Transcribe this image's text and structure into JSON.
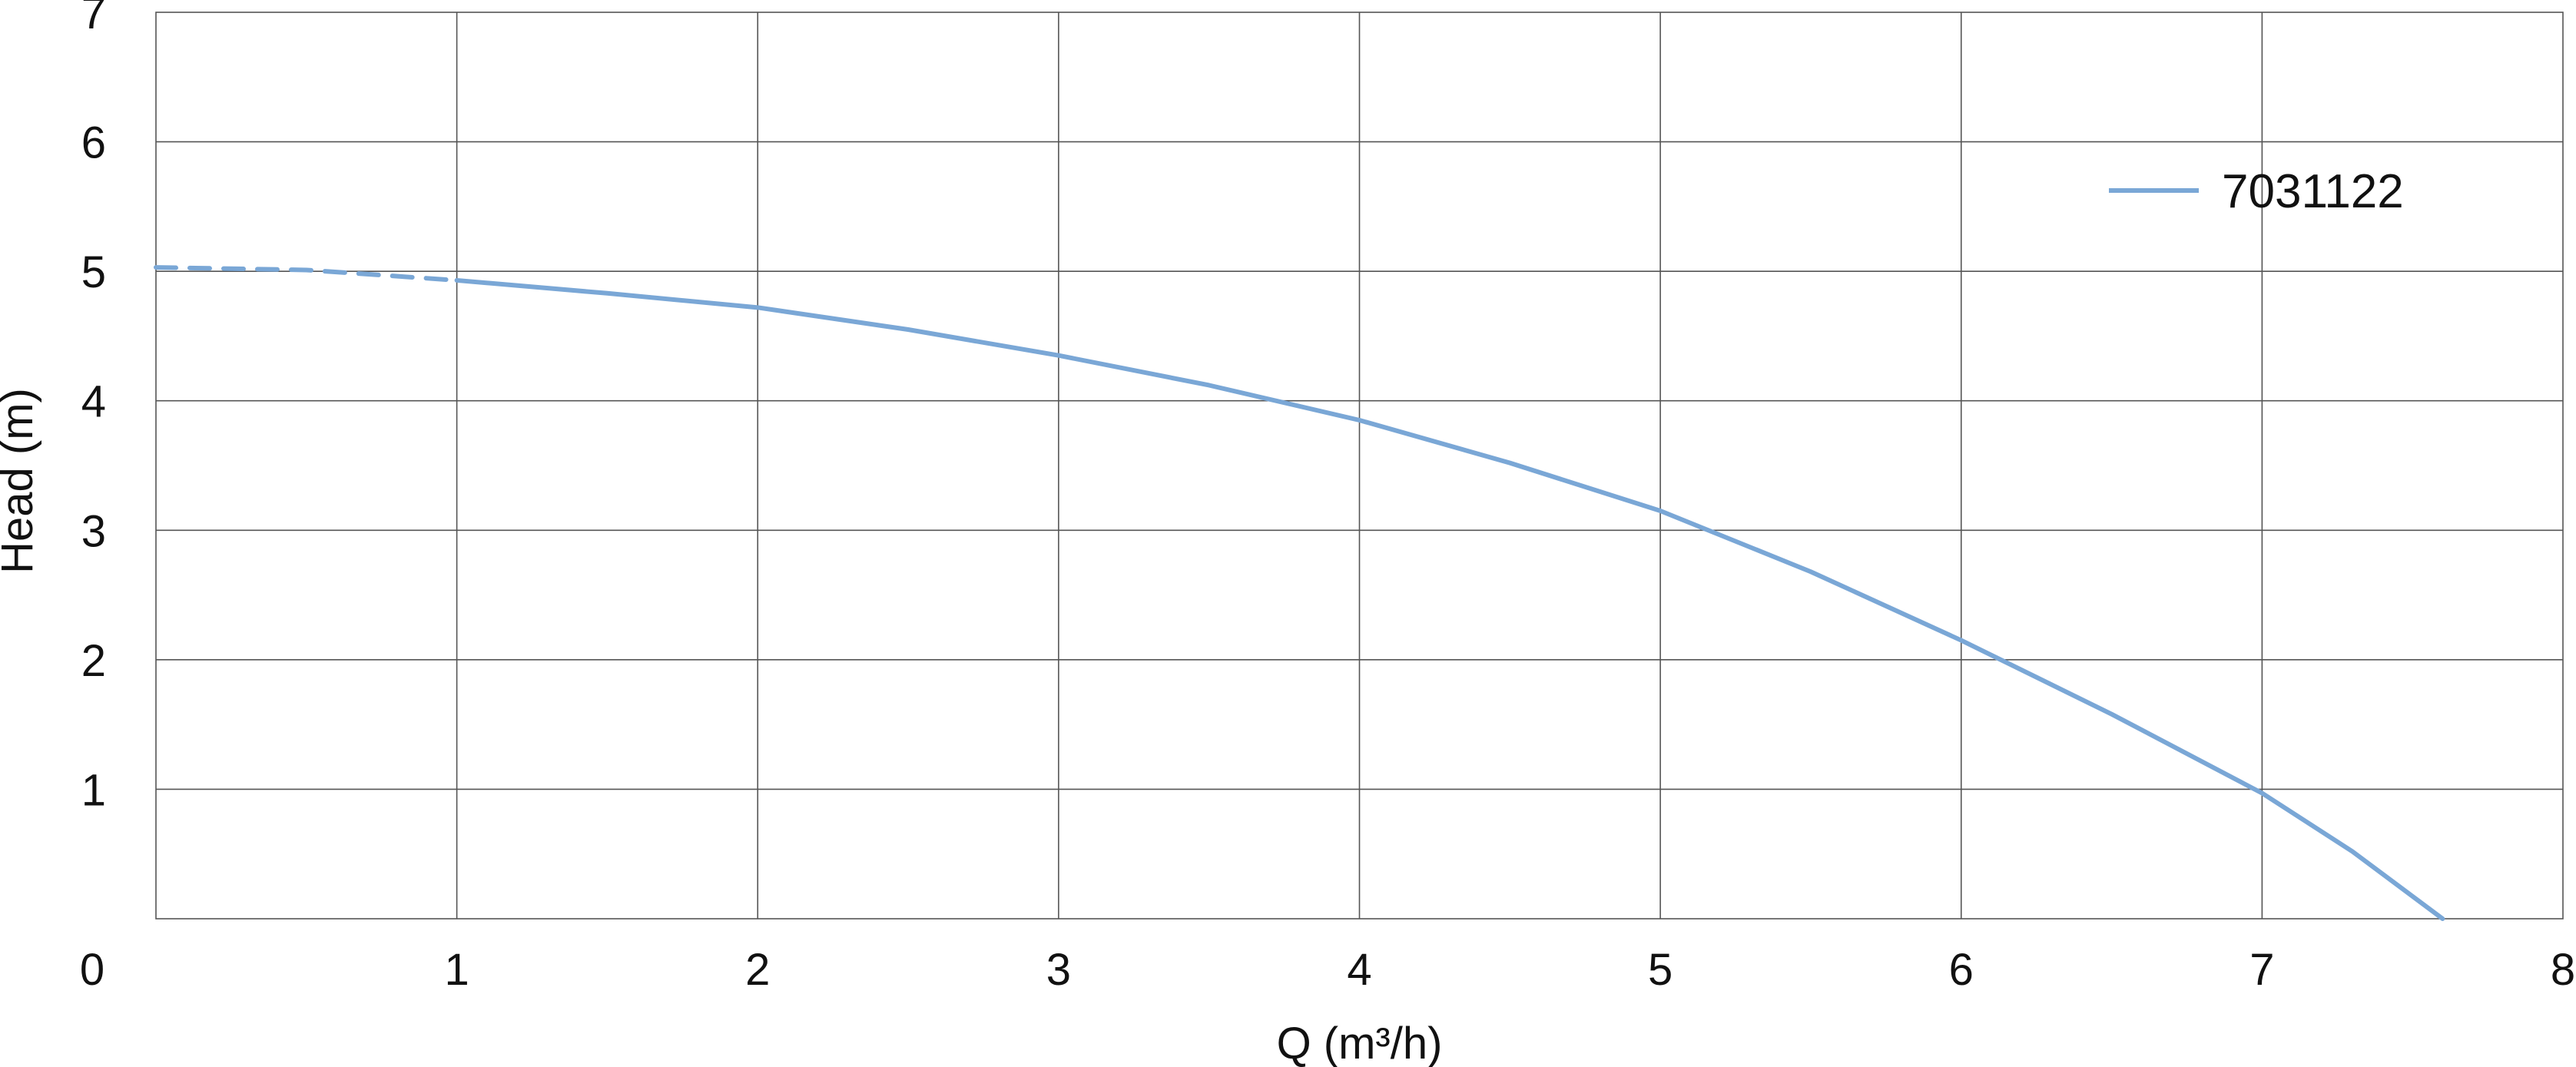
{
  "chart_data": {
    "type": "line",
    "title": "",
    "xlabel": "Q (m³/h)",
    "ylabel": "Head (m)",
    "xlim": [
      0,
      8
    ],
    "ylim": [
      0,
      7
    ],
    "x_ticks": [
      0,
      1,
      2,
      3,
      4,
      5,
      6,
      7,
      8
    ],
    "y_ticks": [
      1,
      2,
      3,
      4,
      5,
      6,
      7
    ],
    "origin_label": "0",
    "grid": true,
    "legend_position": "top-right",
    "series": [
      {
        "name": "7031122",
        "color": "#7aa7d6",
        "dashed_segment": {
          "x": [
            0,
            0.5,
            1.0
          ],
          "y": [
            5.03,
            5.01,
            4.93
          ]
        },
        "x": [
          1.0,
          1.5,
          2.0,
          2.5,
          3.0,
          3.5,
          4.0,
          4.5,
          5.0,
          5.5,
          6.0,
          6.5,
          7.0,
          7.3,
          7.6
        ],
        "y": [
          4.93,
          4.83,
          4.72,
          4.55,
          4.35,
          4.12,
          3.85,
          3.52,
          3.15,
          2.68,
          2.15,
          1.58,
          0.97,
          0.52,
          0.0
        ]
      }
    ]
  }
}
